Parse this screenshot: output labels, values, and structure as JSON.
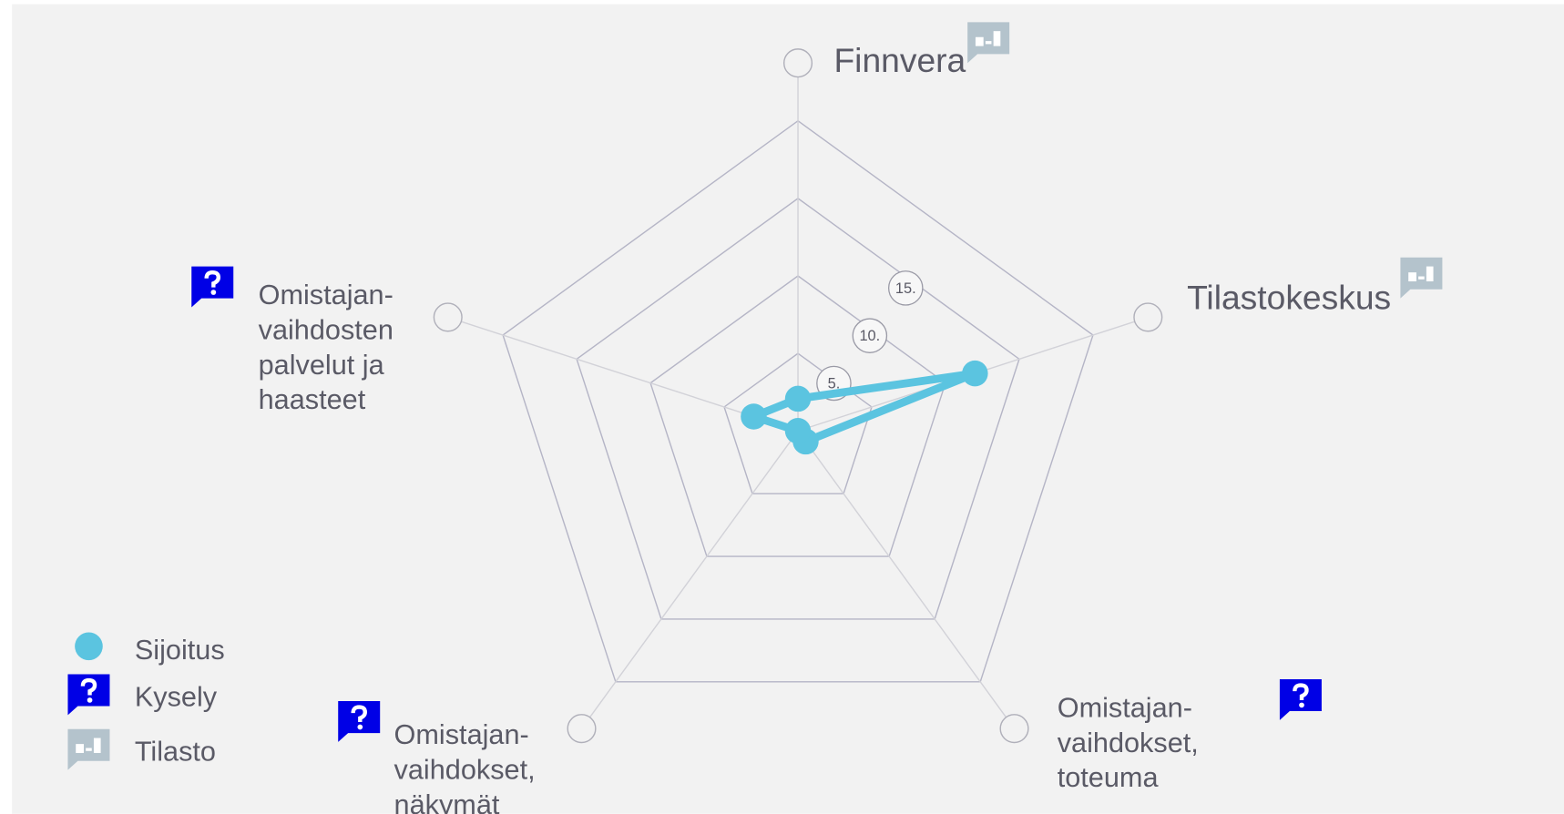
{
  "chart_data": {
    "type": "radar",
    "categories": [
      "Finnvera",
      "Tilastokeskus",
      "Omistajan-\nvaihdokset,\ntoteuma",
      "Omistajan-\nvaihdokset,\nnäkymät",
      "Omistajan-\nvaihdosten\npalvelut ja\nhaasteet"
    ],
    "category_sources": [
      "Tilasto",
      "Tilasto",
      "Kysely",
      "Kysely",
      "Kysely"
    ],
    "series": [
      {
        "name": "Sijoitus",
        "color": "#5bc4e0",
        "values": [
          2.7,
          15.6,
          1.1,
          0,
          3.9
        ]
      }
    ],
    "rlim": [
      0,
      26
    ],
    "rticks": [
      {
        "value": 5,
        "label": "5."
      },
      {
        "value": 10,
        "label": "10."
      },
      {
        "value": 15,
        "label": "15."
      }
    ],
    "grid_rings": [
      6.5,
      13,
      19.5,
      26
    ],
    "legend_sources": [
      {
        "name": "Kysely",
        "color": "#0000e6"
      },
      {
        "name": "Tilasto",
        "color": "#b4c3cc"
      }
    ]
  }
}
